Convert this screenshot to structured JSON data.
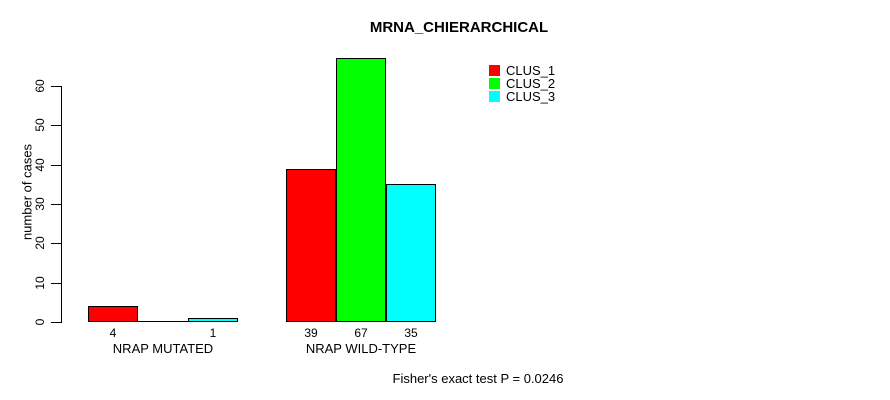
{
  "chart_data": {
    "type": "bar",
    "title": "MRNA_CHIERARCHICAL",
    "ylabel": "number of cases",
    "xlabel": "",
    "ylim": [
      0,
      60
    ],
    "yticks": [
      0,
      10,
      20,
      30,
      40,
      50,
      60
    ],
    "grid": false,
    "background": "#ffffff",
    "axis_color": "#000000",
    "categories": [
      "NRAP MUTATED",
      "NRAP WILD-TYPE"
    ],
    "series": [
      {
        "name": "CLUS_1",
        "color": "#ff0000",
        "values": [
          4,
          39
        ]
      },
      {
        "name": "CLUS_2",
        "color": "#00ff00",
        "values": [
          0,
          67
        ]
      },
      {
        "name": "CLUS_3",
        "color": "#00ffff",
        "values": [
          1,
          35
        ]
      }
    ],
    "bar_value_labels": [
      [
        "4",
        "",
        "1"
      ],
      [
        "39",
        "67",
        "35"
      ]
    ],
    "legend": {
      "position": "top-right",
      "entries": [
        "CLUS_1",
        "CLUS_2",
        "CLUS_3"
      ]
    },
    "annotation": "Fisher's exact test P = 0.0246"
  }
}
